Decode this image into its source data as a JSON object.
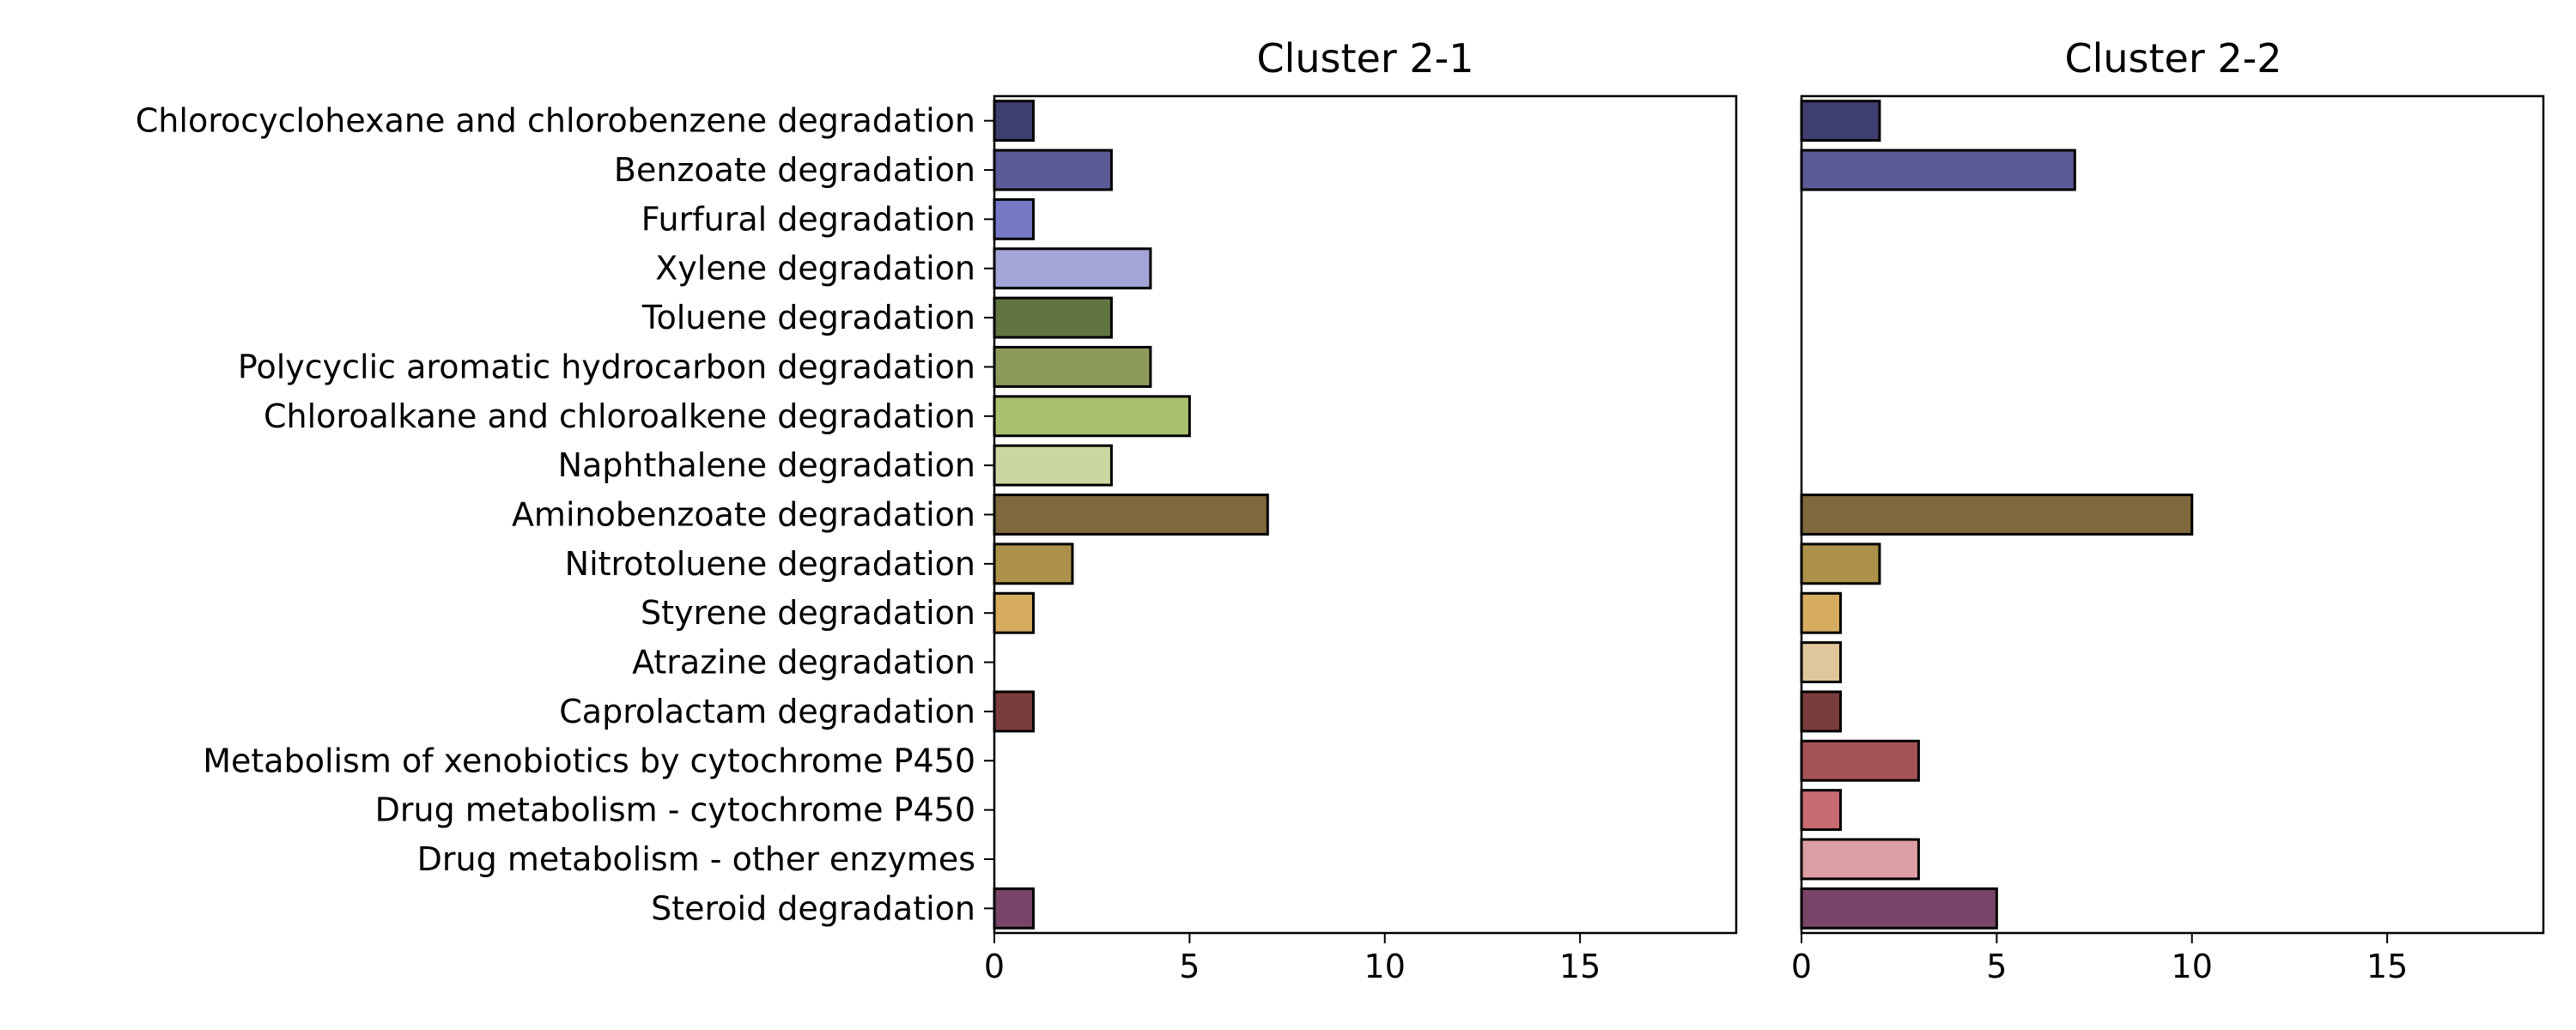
{
  "chart_data": {
    "type": "bar",
    "orientation": "horizontal",
    "categories": [
      "Chlorocyclohexane and chlorobenzene degradation",
      "Benzoate degradation",
      "Furfural degradation",
      "Xylene degradation",
      "Toluene degradation",
      "Polycyclic aromatic hydrocarbon degradation",
      "Chloroalkane and chloroalkene degradation",
      "Naphthalene degradation",
      "Aminobenzoate degradation",
      "Nitrotoluene degradation",
      "Styrene degradation",
      "Atrazine degradation",
      "Caprolactam degradation",
      "Metabolism of xenobiotics by cytochrome P450",
      "Drug metabolism - cytochrome P450",
      "Drug metabolism - other enzymes",
      "Steroid degradation"
    ],
    "colors": [
      "#3e3f6f",
      "#5b5b96",
      "#7679c4",
      "#a2a5d6",
      "#617541",
      "#8c9b5b",
      "#a9c16f",
      "#cbd7a0",
      "#7f683c",
      "#ad914a",
      "#d6ac60",
      "#e0c69b",
      "#7a3c3c",
      "#a55256",
      "#c76a72",
      "#dc9ea2",
      "#784467"
    ],
    "xlim": [
      0,
      19
    ],
    "xticks": [
      0,
      5,
      10,
      15
    ],
    "panels": [
      {
        "title": "Cluster 2-1",
        "values": [
          1,
          3,
          1,
          4,
          3,
          4,
          5,
          3,
          7,
          2,
          1,
          0,
          1,
          0,
          0,
          0,
          1
        ]
      },
      {
        "title": "Cluster 2-2",
        "values": [
          2,
          7,
          0,
          0,
          0,
          0,
          0,
          0,
          10,
          2,
          1,
          1,
          1,
          3,
          1,
          3,
          5
        ]
      }
    ]
  }
}
